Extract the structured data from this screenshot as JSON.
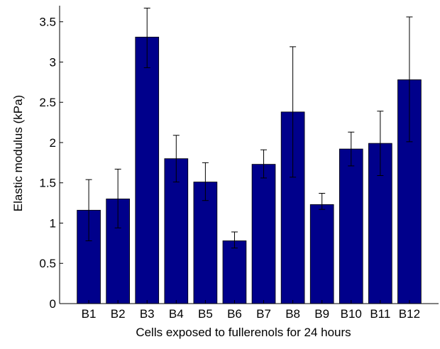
{
  "chart_data": {
    "type": "bar",
    "title": "",
    "xlabel": "Cells exposed to fullerenols for 24 hours",
    "ylabel": "Elastic modulus (kPa)",
    "ylim": [
      0,
      3.7
    ],
    "yticks": [
      "0",
      "0.5",
      "1",
      "1.5",
      "2",
      "2.5",
      "3",
      "3.5"
    ],
    "categories": [
      "B1",
      "B2",
      "B3",
      "B4",
      "B5",
      "B6",
      "B7",
      "B8",
      "B9",
      "B10",
      "B11",
      "B12"
    ],
    "values": [
      1.16,
      1.3,
      3.31,
      1.8,
      1.51,
      0.78,
      1.73,
      2.38,
      1.23,
      1.92,
      1.99,
      2.78
    ],
    "error_upper": [
      1.54,
      1.67,
      3.67,
      2.09,
      1.75,
      0.89,
      1.91,
      3.19,
      1.37,
      2.13,
      2.39,
      3.56
    ],
    "error_lower": [
      0.78,
      0.94,
      2.93,
      1.51,
      1.28,
      0.69,
      1.56,
      1.57,
      1.17,
      1.71,
      1.59,
      2.01
    ],
    "bar_color": "#00008b",
    "grid": false,
    "legend": "none"
  }
}
